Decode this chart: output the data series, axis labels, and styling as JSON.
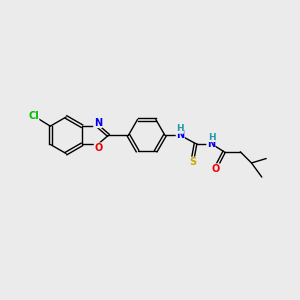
{
  "background_color": "#ebebeb",
  "figsize": [
    3.0,
    3.0
  ],
  "dpi": 100,
  "atom_colors": {
    "C": "#000000",
    "N": "#0000ee",
    "O": "#ee0000",
    "S": "#ccaa00",
    "Cl": "#00bb00",
    "H": "#2299aa"
  },
  "bond_lw": 1.0,
  "font_size": 7.0
}
